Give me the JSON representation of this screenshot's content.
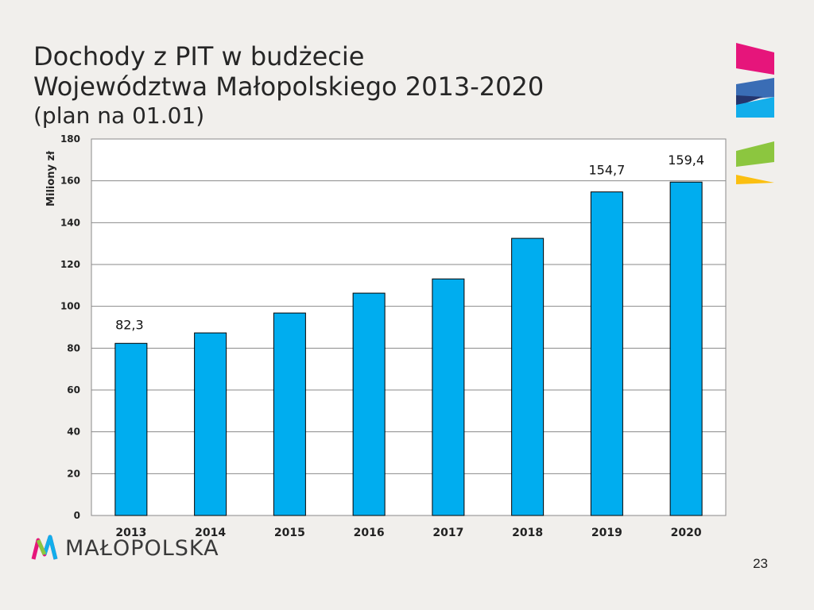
{
  "slide": {
    "title_line1": "Dochody z PIT w budżecie",
    "title_line2": "Województwa Małopolskiego 2013-2020",
    "title_line3": "(plan na 01.01)",
    "logo_text": "MAŁOPOLSKA",
    "page_number": "23"
  },
  "colors": {
    "bar": "#00adef",
    "deco_pink": "#e6157b",
    "deco_blue": "#3a6db5",
    "deco_navy": "#24356e",
    "deco_cyan": "#13aeeb",
    "deco_green": "#8cc63f",
    "deco_yellow": "#fbbf10"
  },
  "chart_data": {
    "type": "bar",
    "ylabel": "Miliony zł",
    "ylim": [
      0,
      180
    ],
    "yticks": [
      "0",
      "20",
      "40",
      "60",
      "80",
      "100",
      "120",
      "140",
      "160",
      "180"
    ],
    "categories": [
      "2013",
      "2014",
      "2015",
      "2016",
      "2017",
      "2018",
      "2019",
      "2020"
    ],
    "values": [
      82.3,
      87.3,
      96.8,
      106.3,
      113.1,
      132.5,
      154.7,
      159.4
    ],
    "data_labels": [
      "82,3",
      "",
      "",
      "",
      "",
      "",
      "154,7",
      "159,4"
    ],
    "grid": true
  }
}
